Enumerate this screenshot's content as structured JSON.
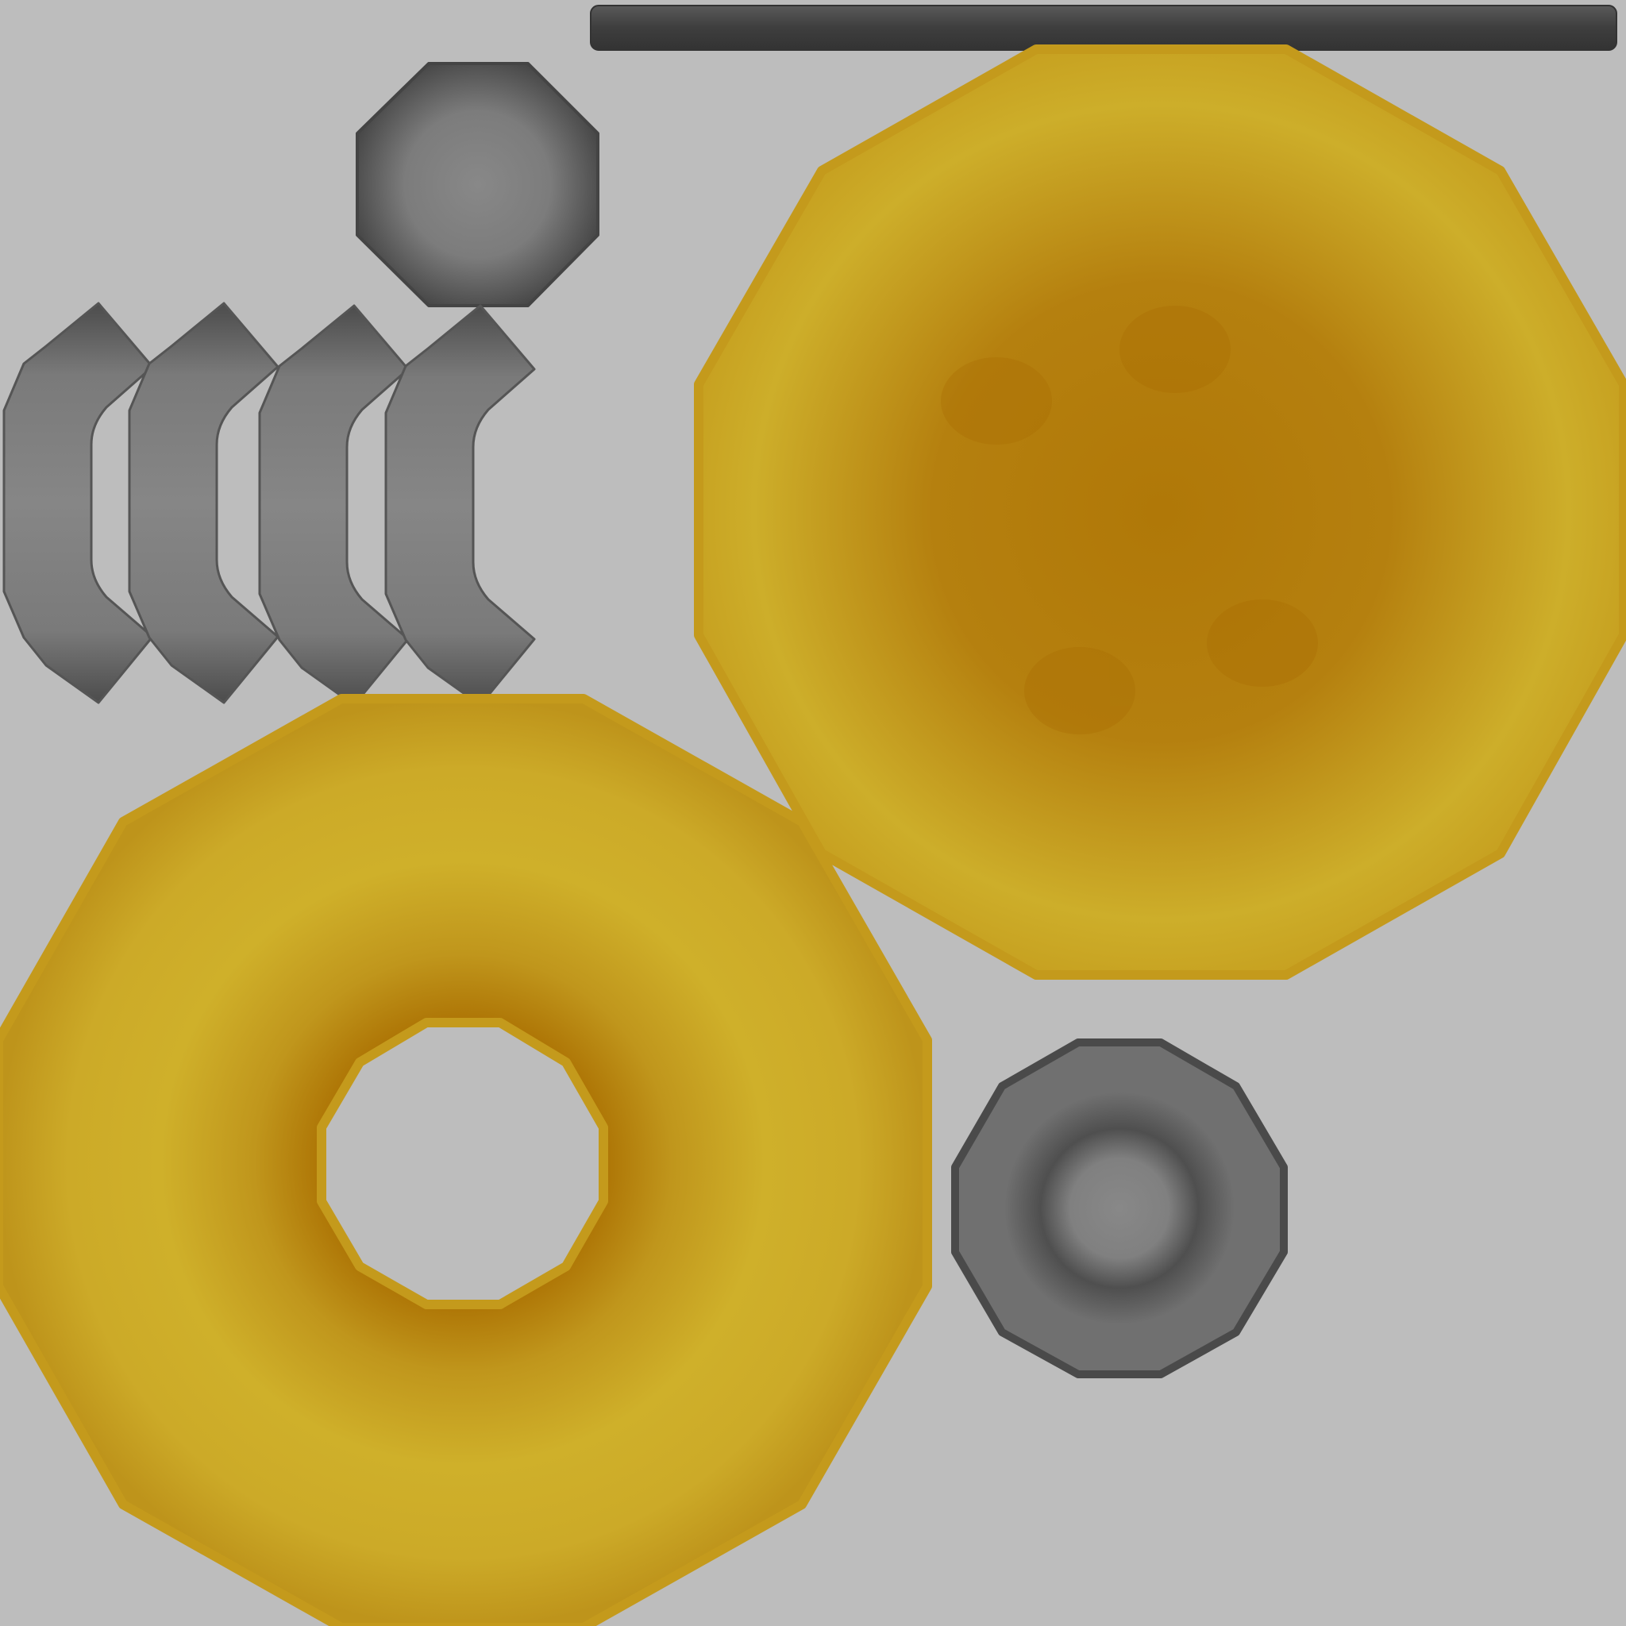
{
  "colors": {
    "background": "#bdbdbd",
    "gold_light": "#cfb02a",
    "gold_mid": "#c09a1e",
    "gold_dark": "#b07808",
    "gray_light": "#848484",
    "gray_mid": "#6e6e6e",
    "gray_dark": "#4a4a4a"
  },
  "pieces": [
    {
      "name": "metal-rod",
      "kind": "bar"
    },
    {
      "name": "octagon-cap",
      "kind": "octagon"
    },
    {
      "name": "curved-segment",
      "kind": "arc",
      "count": 4
    },
    {
      "name": "gold-decagon-disc",
      "kind": "decagon"
    },
    {
      "name": "gold-decagon-ring",
      "kind": "ring"
    },
    {
      "name": "gray-decagon-hub",
      "kind": "decagon"
    }
  ]
}
